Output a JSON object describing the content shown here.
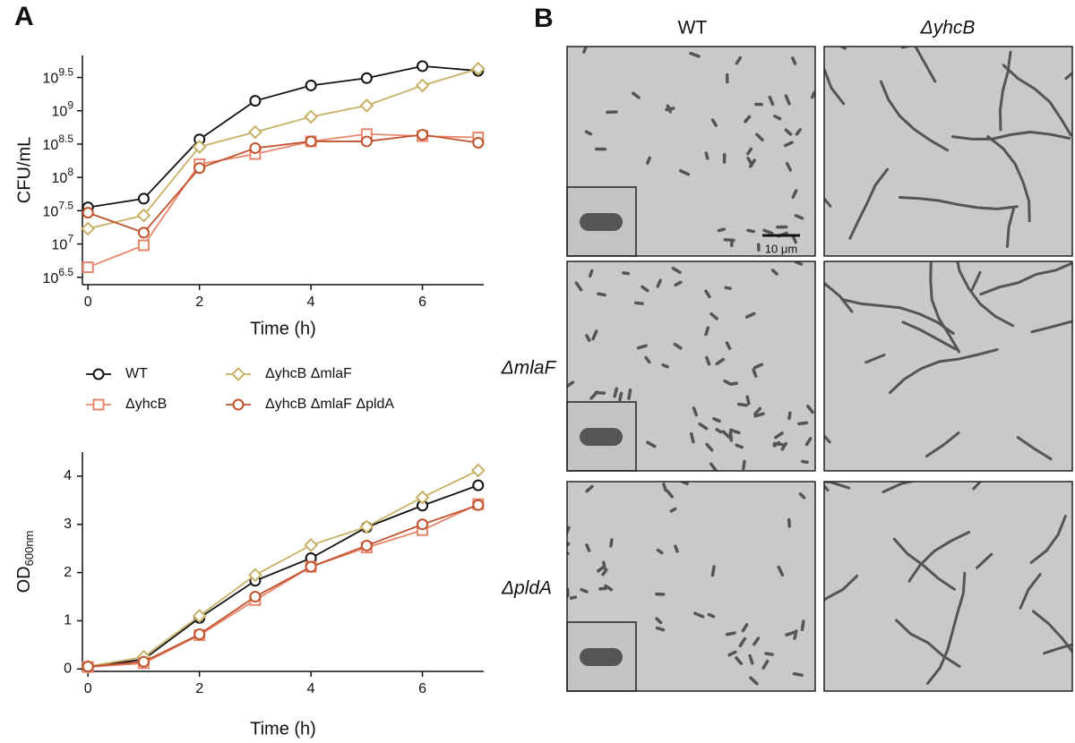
{
  "panel_labels": [
    "A",
    "B"
  ],
  "chart_data": [
    {
      "type": "line",
      "y_label": "CFU/mL",
      "x_label": "Time (h)",
      "yscale": "log",
      "x": [
        0,
        1,
        2,
        3,
        4,
        5,
        6,
        7
      ],
      "xlim": [
        -0.1,
        7.1
      ],
      "xticks": [
        0,
        2,
        4,
        6
      ],
      "ylim": [
        2450000,
        6760000000
      ],
      "yticks": [
        {
          "value": 3162278,
          "label": {
            "base": "10",
            "exponent": "6.5"
          }
        },
        {
          "value": 10000000,
          "label": {
            "base": "10",
            "exponent": "7"
          }
        },
        {
          "value": 31622777,
          "label": {
            "base": "10",
            "exponent": "7.5"
          }
        },
        {
          "value": 100000000,
          "label": {
            "base": "10",
            "exponent": "8"
          }
        },
        {
          "value": 316227766,
          "label": {
            "base": "10",
            "exponent": "8.5"
          }
        },
        {
          "value": 1000000000,
          "label": {
            "base": "10",
            "exponent": "9"
          }
        },
        {
          "value": 3162277660,
          "label": {
            "base": "10",
            "exponent": "9.5"
          }
        }
      ],
      "series": [
        {
          "name": "WT",
          "color": "#111111",
          "marker": "circle",
          "values": [
            35500000,
            47900000,
            372000000,
            1410000000,
            2400000000,
            3090000000,
            4680000000,
            3980000000
          ]
        },
        {
          "name": "ΔyhcB",
          "color": "#e8866c",
          "marker": "square",
          "values": [
            4470000,
            9550000,
            158000000,
            224000000,
            347000000,
            447000000,
            417000000,
            398000000
          ]
        },
        {
          "name": "ΔyhcB ΔmlaF",
          "color": "#c8b066",
          "marker": "diamond",
          "values": [
            17000000,
            26900000,
            288000000,
            479000000,
            813000000,
            1200000000,
            2400000000,
            4270000000
          ]
        },
        {
          "name": "ΔyhcB ΔmlaF ΔpldA",
          "color": "#c0532e",
          "marker": "circle",
          "values": [
            29500000,
            14800000,
            138000000,
            275000000,
            347000000,
            347000000,
            437000000,
            331000000
          ]
        }
      ]
    },
    {
      "type": "line",
      "y_label": {
        "text": "OD",
        "subscript": "600nm"
      },
      "x_label": "Time (h)",
      "x": [
        0,
        1,
        2,
        3,
        4,
        5,
        6,
        7
      ],
      "xlim": [
        -0.1,
        7.1
      ],
      "xticks": [
        0,
        2,
        4,
        6
      ],
      "ylim": [
        -0.05,
        4.5
      ],
      "yticks": [
        0,
        1,
        2,
        3,
        4
      ],
      "series": [
        {
          "color": "#111111",
          "marker": "circle",
          "values": [
            0.04,
            0.2,
            1.06,
            1.83,
            2.3,
            2.94,
            3.39,
            3.81
          ]
        },
        {
          "color": "#e8866c",
          "marker": "square",
          "values": [
            0.04,
            0.12,
            0.7,
            1.43,
            2.12,
            2.52,
            2.88,
            3.42
          ]
        },
        {
          "color": "#c8b066",
          "marker": "diamond",
          "values": [
            0.05,
            0.25,
            1.1,
            1.95,
            2.57,
            2.95,
            3.56,
            4.12
          ]
        },
        {
          "color": "#c0532e",
          "marker": "circle",
          "values": [
            0.05,
            0.15,
            0.72,
            1.5,
            2.12,
            2.56,
            3.0,
            3.4
          ]
        }
      ]
    }
  ],
  "micrographs": {
    "columns": [
      "WT",
      "ΔyhcB"
    ],
    "rows": [
      "ΔmlaF",
      "ΔpldA"
    ],
    "scale_bar": "10 μm"
  }
}
